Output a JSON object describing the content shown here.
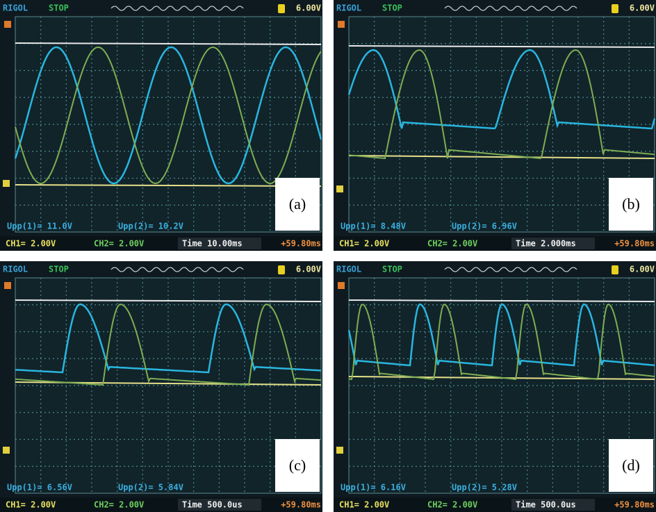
{
  "panels": [
    {
      "brand": "RIGOL",
      "status": "STOP",
      "trigger_level": "6.00V",
      "upp1": "Upp(1)= 11.0V",
      "upp2": "Upp(2)= 10.2V",
      "ch1": "CH1= 2.00V",
      "ch2": "CH2= 2.00V",
      "time": "Time 10.00ms",
      "offset": "+59.80ms",
      "label": "(a)"
    },
    {
      "brand": "RIGOL",
      "status": "STOP",
      "trigger_level": "6.00V",
      "upp1": "Upp(1)= 8.48V",
      "upp2": "Upp(2)= 6.96V",
      "ch1": "CH1= 2.00V",
      "ch2": "CH2= 2.00V",
      "time": "Time 2.000ms",
      "offset": "+59.80ms",
      "label": "(b)"
    },
    {
      "brand": "RIGOL",
      "status": "STOP",
      "trigger_level": "6.00V",
      "upp1": "Upp(1)= 6.56V",
      "upp2": "Upp(2)= 5.84V",
      "ch1": "CH1= 2.00V",
      "ch2": "CH2= 2.00V",
      "time": "Time 500.0us",
      "offset": "+59.80ms",
      "label": "(c)"
    },
    {
      "brand": "RIGOL",
      "status": "STOP",
      "trigger_level": "6.00V",
      "upp1": "Upp(1)= 6.16V",
      "upp2": "Upp(2)= 5.28V",
      "ch1": "CH1= 2.00V",
      "ch2": "CH2= 2.00V",
      "time": "Time 500.0us",
      "offset": "+59.80ms",
      "label": "(d)"
    }
  ]
}
